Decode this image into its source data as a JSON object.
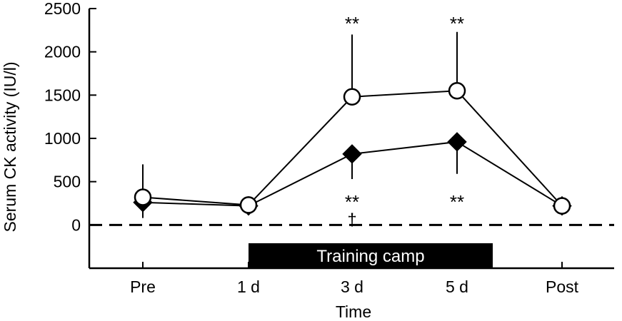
{
  "chart_data": {
    "type": "line",
    "xlabel": "Time",
    "ylabel": "Serum CK activity (IU/l)",
    "categories": [
      "Pre",
      "1 d",
      "3 d",
      "5 d",
      "Post"
    ],
    "ylim": [
      -500,
      2500
    ],
    "yticks": [
      0,
      500,
      1000,
      1500,
      2000,
      2500
    ],
    "grid": false,
    "series": [
      {
        "marker": "open-circle",
        "values": [
          320,
          230,
          1480,
          1550,
          220
        ],
        "error_upper": [
          700,
          240,
          2200,
          2230,
          300
        ],
        "error_lower": [
          320,
          230,
          1480,
          1550,
          220
        ]
      },
      {
        "marker": "filled-diamond",
        "values": [
          260,
          220,
          820,
          960,
          220
        ],
        "error_upper": [
          260,
          220,
          820,
          960,
          220
        ],
        "error_lower": [
          80,
          230,
          530,
          590,
          160
        ]
      }
    ],
    "reference_line": {
      "y": 0,
      "style": "dashed"
    },
    "annotations": [
      {
        "category": "3 d",
        "text": "**",
        "position": "above"
      },
      {
        "category": "5 d",
        "text": "**",
        "position": "above"
      },
      {
        "category": "3 d",
        "text": "**",
        "position": "below"
      },
      {
        "category": "3 d",
        "text": "†",
        "position": "below"
      },
      {
        "category": "5 d",
        "text": "**",
        "position": "below"
      }
    ],
    "period_bar": {
      "label": "Training camp",
      "from": "1 d",
      "to": "5 d"
    }
  }
}
